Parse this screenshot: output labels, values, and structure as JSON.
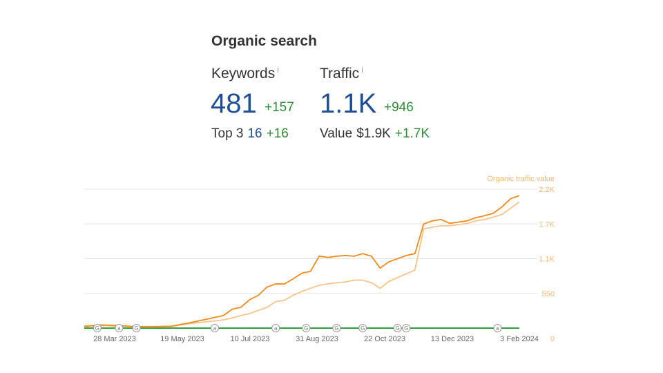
{
  "header": {
    "title": "Organic search"
  },
  "keywords": {
    "label": "Keywords",
    "info": "i",
    "value": "481",
    "delta": "+157",
    "top3_label": "Top 3",
    "top3_value": "16",
    "top3_delta": "+16"
  },
  "traffic": {
    "label": "Traffic",
    "info": "i",
    "value": "1.1K",
    "delta": "+946",
    "value_label": "Value",
    "value_amount": "$1.9K",
    "value_delta": "+1.7K"
  },
  "colors": {
    "traffic_line": "#f08a1c",
    "value_line": "#f7c48a",
    "baseline": "#2e9e3e",
    "gridline": "#e6e6e6"
  },
  "chart_data": {
    "type": "line",
    "legend": "Organic traffic value",
    "x": [
      0,
      4,
      8,
      12,
      16,
      20,
      24,
      28,
      32,
      34,
      36,
      38,
      40,
      42,
      44,
      46,
      48,
      50,
      52,
      54,
      56,
      58,
      60,
      62,
      64,
      66,
      68,
      70,
      72,
      74,
      76,
      78,
      80,
      82,
      84,
      86,
      88,
      90,
      92,
      94,
      96,
      98,
      100
    ],
    "series": [
      {
        "name": "Organic traffic",
        "values": [
          30,
          50,
          40,
          25,
          25,
          30,
          80,
          140,
          200,
          300,
          330,
          450,
          520,
          650,
          700,
          700,
          780,
          870,
          900,
          1140,
          1120,
          1140,
          1150,
          1140,
          1180,
          1140,
          950,
          1050,
          1100,
          1150,
          1180,
          1650,
          1700,
          1720,
          1660,
          1680,
          1700,
          1750,
          1780,
          1820,
          1920,
          2050,
          2100
        ]
      },
      {
        "name": "Organic traffic value",
        "values": [
          20,
          40,
          30,
          20,
          20,
          25,
          70,
          100,
          130,
          160,
          200,
          230,
          280,
          330,
          420,
          440,
          520,
          580,
          630,
          680,
          700,
          720,
          730,
          760,
          760,
          720,
          630,
          740,
          800,
          860,
          920,
          1570,
          1600,
          1620,
          1620,
          1640,
          1660,
          1700,
          1720,
          1760,
          1800,
          1900,
          2000
        ]
      }
    ],
    "x_ticks": [
      "28 Mar 2023",
      "19 May 2023",
      "10 Jul 2023",
      "31 Aug 2023",
      "22 Oct 2023",
      "13 Dec 2023",
      "3 Feb 2024"
    ],
    "y_ticks": [
      "0",
      "550",
      "1.1K",
      "1.7K",
      "2.2K"
    ],
    "ylim": [
      0,
      2200
    ],
    "markers": [
      {
        "label": "G",
        "x": 3
      },
      {
        "label": "a",
        "x": 8
      },
      {
        "label": "G",
        "x": 12
      },
      {
        "label": "a",
        "x": 30
      },
      {
        "label": "a",
        "x": 44
      },
      {
        "label": "G",
        "x": 51
      },
      {
        "label": "G",
        "x": 58
      },
      {
        "label": "G",
        "x": 64
      },
      {
        "label": "G",
        "x": 72
      },
      {
        "label": "G",
        "x": 74
      },
      {
        "label": "a",
        "x": 95
      }
    ]
  }
}
